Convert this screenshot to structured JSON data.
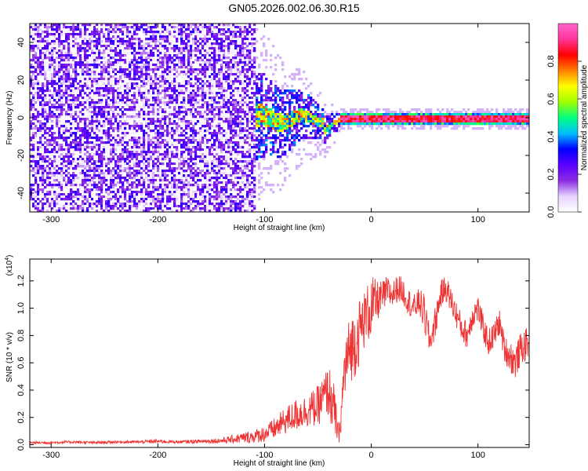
{
  "title": "GN05.2026.002.06.30.R15",
  "chart_data": [
    {
      "type": "heatmap",
      "xlabel": "Height of straight line (km)",
      "ylabel": "Frequency (Hz)",
      "xlim": [
        -320,
        148
      ],
      "ylim": [
        -50,
        50
      ],
      "xticks": [
        -300,
        -200,
        -100,
        0,
        100
      ],
      "yticks": [
        -40,
        -20,
        0,
        20,
        40
      ],
      "colorbar": {
        "label": "Normalized spectral amplitude",
        "range": [
          0,
          1
        ],
        "ticks": [
          0.0,
          0.2,
          0.4,
          0.6,
          0.8
        ],
        "colormap": [
          "#ffffff",
          "#e6d2ff",
          "#8a2be2",
          "#5a00ff",
          "#0000ff",
          "#00bfff",
          "#00ff80",
          "#a0ff00",
          "#ffff00",
          "#ff8000",
          "#ff0000",
          "#ff3399",
          "#ff66cc"
        ]
      },
      "description_regions": [
        {
          "x_range": [
            -320,
            -110
          ],
          "freq_range": [
            -50,
            50
          ],
          "amplitude": 0.1
        },
        {
          "x_range": [
            -110,
            -30
          ],
          "freq_range": [
            -15,
            15
          ],
          "amplitude": 0.35
        },
        {
          "x_range": [
            -30,
            148
          ],
          "freq_range": [
            -2,
            2
          ],
          "amplitude": 0.9
        }
      ]
    },
    {
      "type": "line",
      "xlabel": "Height of straight line (km)",
      "ylabel": "SNR (10 * v/v)",
      "multiplier_label": "(x10",
      "multiplier_exp": "4",
      "xlim": [
        -320,
        148
      ],
      "ylim": [
        -0.02,
        1.36
      ],
      "xticks": [
        -300,
        -200,
        -100,
        0,
        100
      ],
      "yticks": [
        0.0,
        0.2,
        0.4,
        0.6,
        0.8,
        1.0,
        1.2
      ],
      "ytick_labels": [
        "0.0",
        "0.2",
        "0.4",
        "0.6",
        "0.8",
        "1.0",
        "1.2"
      ],
      "series": [
        {
          "color": "#ee3333",
          "x": [
            -320,
            -300,
            -280,
            -260,
            -240,
            -220,
            -200,
            -180,
            -160,
            -140,
            -130,
            -120,
            -110,
            -100,
            -90,
            -80,
            -70,
            -60,
            -50,
            -45,
            -40,
            -35,
            -30,
            -25,
            -20,
            -15,
            -10,
            -5,
            0,
            5,
            10,
            15,
            20,
            25,
            30,
            35,
            40,
            45,
            50,
            55,
            60,
            65,
            70,
            75,
            80,
            85,
            90,
            95,
            100,
            105,
            110,
            115,
            120,
            125,
            130,
            135,
            140,
            148
          ],
          "y": [
            0.015,
            0.015,
            0.02,
            0.015,
            0.02,
            0.02,
            0.025,
            0.02,
            0.025,
            0.03,
            0.04,
            0.05,
            0.06,
            0.08,
            0.12,
            0.18,
            0.22,
            0.25,
            0.28,
            0.35,
            0.4,
            0.25,
            0.05,
            0.55,
            0.7,
            0.75,
            0.85,
            0.95,
            1.0,
            1.05,
            1.08,
            1.12,
            1.1,
            1.15,
            1.12,
            1.05,
            1.0,
            1.05,
            0.95,
            0.75,
            0.9,
            1.1,
            1.15,
            1.05,
            0.95,
            0.85,
            0.8,
            0.95,
            1.0,
            0.85,
            0.75,
            0.8,
            0.9,
            0.7,
            0.65,
            0.6,
            0.7,
            0.75
          ],
          "band": [
            0.01,
            0.01,
            0.01,
            0.01,
            0.01,
            0.01,
            0.015,
            0.01,
            0.015,
            0.02,
            0.03,
            0.04,
            0.05,
            0.06,
            0.08,
            0.1,
            0.12,
            0.12,
            0.15,
            0.15,
            0.2,
            0.2,
            0.05,
            0.25,
            0.25,
            0.25,
            0.25,
            0.2,
            0.25,
            0.15,
            0.12,
            0.12,
            0.1,
            0.1,
            0.1,
            0.1,
            0.1,
            0.1,
            0.15,
            0.1,
            0.12,
            0.1,
            0.1,
            0.1,
            0.1,
            0.1,
            0.1,
            0.1,
            0.1,
            0.1,
            0.1,
            0.1,
            0.1,
            0.1,
            0.12,
            0.12,
            0.12,
            0.12
          ]
        }
      ]
    }
  ]
}
